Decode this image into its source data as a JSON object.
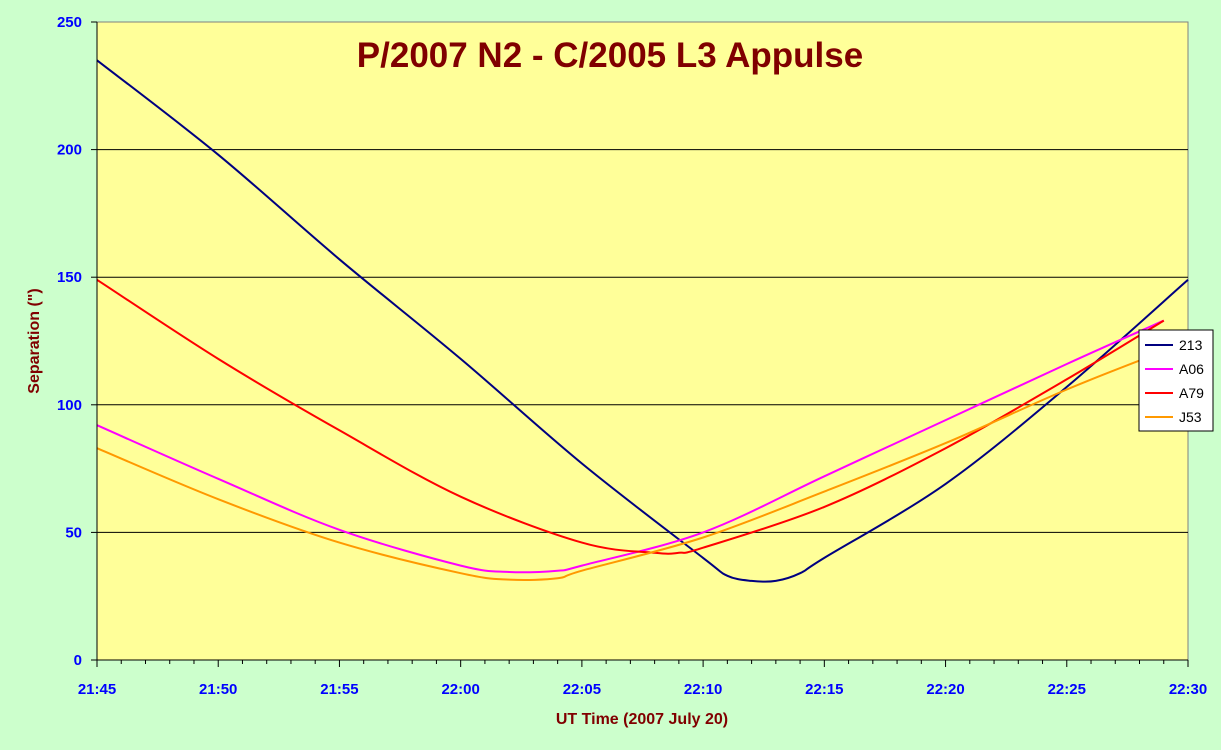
{
  "chart_data": {
    "type": "line",
    "title": "P/2007 N2 - C/2005 L3 Appulse",
    "xlabel": "UT Time (2007 July 20)",
    "ylabel": "Separation (\")",
    "xlim": [
      "21:45",
      "22:30"
    ],
    "ylim": [
      0,
      250
    ],
    "x_ticks": [
      "21:45",
      "21:50",
      "21:55",
      "22:00",
      "22:05",
      "22:10",
      "22:15",
      "22:20",
      "22:25",
      "22:30"
    ],
    "y_ticks": [
      0,
      50,
      100,
      150,
      200,
      250
    ],
    "grid": "horizontal",
    "legend_position": "right",
    "colors": {
      "background": "#ccffcc",
      "plot_area": "#ffff99",
      "title": "#800000",
      "axis_title": "#800000",
      "tick_labels": "#0000ff"
    },
    "series": [
      {
        "name": "213",
        "color": "#000080",
        "x": [
          "21:45",
          "21:50",
          "21:55",
          "22:00",
          "22:05",
          "22:10",
          "22:11",
          "22:12",
          "22:13",
          "22:14",
          "22:15",
          "22:20",
          "22:25",
          "22:30"
        ],
        "values": [
          235,
          198,
          157,
          118,
          77,
          40,
          33,
          31,
          31,
          34,
          40,
          69,
          107,
          149
        ]
      },
      {
        "name": "A06",
        "color": "#ff00ff",
        "x": [
          "21:45",
          "21:50",
          "21:55",
          "22:00",
          "22:02",
          "22:04",
          "22:05",
          "22:10",
          "22:15",
          "22:20",
          "22:25",
          "22:29"
        ],
        "values": [
          92,
          71,
          51,
          37,
          34.5,
          35,
          37,
          50,
          72,
          94,
          116,
          133
        ]
      },
      {
        "name": "A79",
        "color": "#ff0000",
        "x": [
          "21:45",
          "21:50",
          "21:55",
          "22:00",
          "22:05",
          "22:08",
          "22:09",
          "22:10",
          "22:15",
          "22:20",
          "22:25",
          "22:29"
        ],
        "values": [
          149,
          118,
          90,
          64,
          46,
          42,
          42,
          44,
          60,
          83,
          110,
          133
        ]
      },
      {
        "name": "J53",
        "color": "#ff9900",
        "x": [
          "21:45",
          "21:50",
          "21:55",
          "22:00",
          "22:02",
          "22:04",
          "22:05",
          "22:10",
          "22:15",
          "22:20",
          "22:25",
          "22:29"
        ],
        "values": [
          83,
          63,
          46,
          34,
          31.5,
          32,
          35,
          48,
          66,
          85,
          106,
          121
        ]
      }
    ]
  }
}
